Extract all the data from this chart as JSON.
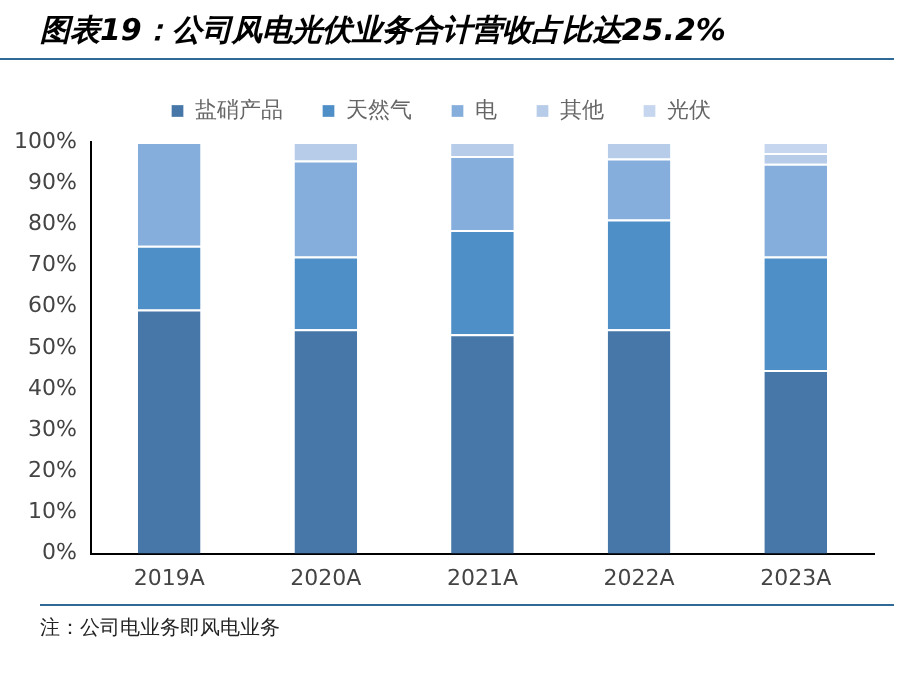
{
  "chart_data": {
    "type": "bar",
    "title": "图表19：公司风电光伏业务合计营收占比达25.2%",
    "stacked": true,
    "legend": "top",
    "grid": false,
    "categories": [
      "2019A",
      "2020A",
      "2021A",
      "2022A",
      "2023A"
    ],
    "series": [
      {
        "name": "盐硝产品",
        "color": "#4677a8",
        "values": [
          59.3,
          54.5,
          53.3,
          54.5,
          44.6
        ]
      },
      {
        "name": "天然气",
        "color": "#4f8fc8",
        "values": [
          15.5,
          17.7,
          25.3,
          26.7,
          27.6
        ]
      },
      {
        "name": "电",
        "color": "#86aedc",
        "values": [
          25.2,
          23.3,
          18,
          14.8,
          22.5
        ]
      },
      {
        "name": "其他",
        "color": "#b7cce9",
        "values": [
          0,
          4.5,
          3.4,
          4,
          2.6
        ]
      },
      {
        "name": "光伏",
        "color": "#c5d6ee",
        "values": [
          0,
          0,
          0,
          0,
          2.7
        ]
      }
    ],
    "ylim": [
      0,
      100
    ],
    "yticks": [
      {
        "value": 0,
        "label": "0%"
      },
      {
        "value": 10,
        "label": "10%"
      },
      {
        "value": 20,
        "label": "20%"
      },
      {
        "value": 30,
        "label": "30%"
      },
      {
        "value": 40,
        "label": "40%"
      },
      {
        "value": 50,
        "label": "50%"
      },
      {
        "value": 60,
        "label": "60%"
      },
      {
        "value": 70,
        "label": "70%"
      },
      {
        "value": 80,
        "label": "80%"
      },
      {
        "value": 90,
        "label": "90%"
      },
      {
        "value": 100,
        "label": "100%"
      }
    ],
    "annotations": [
      "注：公司电业务即风电业务"
    ]
  }
}
